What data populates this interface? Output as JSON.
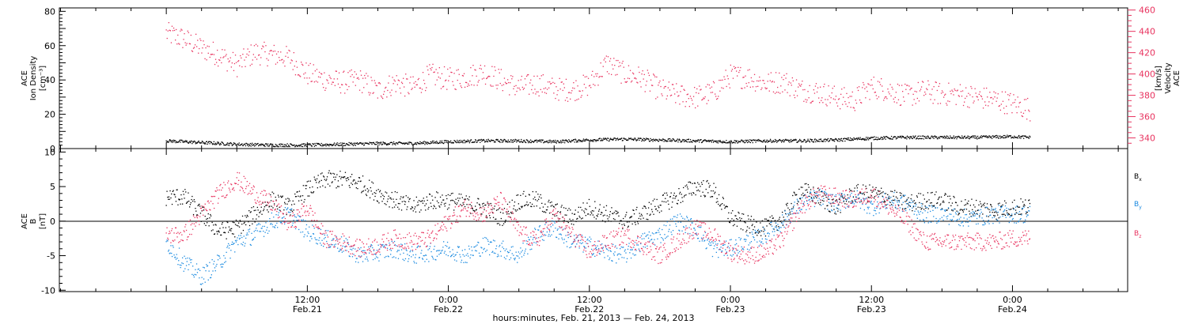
{
  "colors": {
    "black": "#000000",
    "pink": "#e8335f",
    "blue": "#1a8ae0"
  },
  "chart_data": [
    {
      "type": "scatter",
      "panel": "top",
      "ylabel_left": [
        "ACE",
        "Ion Density",
        "[cm⁻³]"
      ],
      "ylabel_right": [
        "ACE",
        "Velocity",
        "[km/s]"
      ],
      "y_left_ticks": [
        "0",
        "20",
        "40",
        "60",
        "80"
      ],
      "y_left_lim": [
        0,
        82
      ],
      "y_right_ticks": [
        "340",
        "360",
        "380",
        "400",
        "420",
        "440",
        "460"
      ],
      "y_right_lim": [
        330,
        462
      ],
      "series": [
        {
          "axis": "right",
          "color": "#e8335f",
          "x_hours": [
            0,
            1.5,
            3,
            4.5,
            6,
            7.5,
            9,
            10.5,
            12,
            13.5,
            15,
            16.5,
            18,
            19.5,
            21,
            22.5,
            24,
            25.5,
            27,
            28.5,
            30,
            31.5,
            33,
            34.5,
            36,
            37.5,
            39,
            40.5,
            42,
            43.5,
            45,
            46.5,
            48,
            49.5,
            51,
            52.5,
            54,
            55.5,
            57,
            58.5,
            60,
            61.5,
            63,
            64.5,
            66,
            67.5,
            69,
            70.5,
            72,
            73.5
          ],
          "values": [
            438,
            433,
            424,
            418,
            408,
            420,
            418,
            415,
            400,
            395,
            392,
            394,
            384,
            392,
            387,
            399,
            395,
            397,
            402,
            394,
            387,
            391,
            386,
            385,
            390,
            410,
            400,
            396,
            385,
            380,
            378,
            382,
            398,
            397,
            391,
            393,
            385,
            383,
            378,
            375,
            388,
            385,
            379,
            384,
            381,
            381,
            378,
            376,
            372,
            367
          ]
        },
        {
          "axis": "left",
          "color": "#000000",
          "x_hours": [
            0,
            3,
            6,
            9,
            12,
            15,
            18,
            21,
            24,
            27,
            30,
            33,
            36,
            39,
            42,
            45,
            48,
            51,
            54,
            57,
            60,
            63,
            66,
            69,
            72,
            73.5
          ],
          "values": [
            4.5,
            3.5,
            2.5,
            2.0,
            2.0,
            2.5,
            3.0,
            3.0,
            4.0,
            4.5,
            4.5,
            4.0,
            5.0,
            5.5,
            5.0,
            4.5,
            4.0,
            4.5,
            4.5,
            5.0,
            6.0,
            6.5,
            6.5,
            6.5,
            7.0,
            6.5
          ]
        }
      ]
    },
    {
      "type": "scatter",
      "panel": "bottom",
      "ylabel_left": [
        "ACE",
        "B",
        "[nT]"
      ],
      "y_ticks": [
        "-10",
        "-5",
        "0",
        "5",
        "10"
      ],
      "ylim": [
        -10.2,
        10.5
      ],
      "legend": {
        "placement": "right",
        "entries": [
          "Bx",
          "By",
          "Bz"
        ]
      },
      "x_hours": [
        0,
        1.5,
        3,
        4.5,
        6,
        7.5,
        9,
        10.5,
        12,
        13.5,
        15,
        16.5,
        18,
        19.5,
        21,
        22.5,
        24,
        25.5,
        27,
        28.5,
        30,
        31.5,
        33,
        34.5,
        36,
        37.5,
        39,
        40.5,
        42,
        43.5,
        45,
        46.5,
        48,
        49.5,
        51,
        52.5,
        54,
        55.5,
        57,
        58.5,
        60,
        61.5,
        63,
        64.5,
        66,
        67.5,
        69,
        70.5,
        72,
        73.5
      ],
      "series": [
        {
          "name": "Bx",
          "color": "#000000",
          "values": [
            3.5,
            3.5,
            1.0,
            -1.5,
            -1.0,
            1.0,
            3.0,
            2.0,
            4.5,
            6.0,
            6.0,
            5.5,
            4.0,
            3.0,
            2.0,
            3.0,
            3.0,
            2.5,
            2.0,
            0.5,
            3.0,
            3.0,
            1.5,
            0.5,
            2.0,
            1.0,
            0.0,
            1.0,
            2.5,
            3.5,
            5.0,
            4.5,
            0.5,
            -0.5,
            -1.0,
            0.5,
            4.5,
            3.5,
            2.0,
            4.0,
            4.0,
            3.5,
            2.5,
            3.0,
            3.0,
            2.0,
            2.0,
            1.5,
            2.0,
            2.0
          ]
        },
        {
          "name": "By",
          "color": "#1a8ae0",
          "values": [
            -3.0,
            -6.0,
            -8.0,
            -6.0,
            -3.0,
            -2.0,
            0.0,
            1.0,
            -1.5,
            -2.5,
            -3.5,
            -5.0,
            -4.5,
            -4.0,
            -5.0,
            -4.5,
            -4.0,
            -5.0,
            -3.5,
            -4.0,
            -5.0,
            -2.0,
            -1.0,
            -3.0,
            -3.5,
            -4.5,
            -5.0,
            -3.0,
            -2.0,
            0.0,
            -1.0,
            -4.0,
            -4.0,
            -3.0,
            -2.0,
            0.0,
            2.5,
            3.5,
            2.5,
            3.5,
            2.0,
            3.0,
            2.5,
            1.0,
            1.0,
            0.5,
            0.5,
            1.0,
            1.0,
            1.0
          ]
        },
        {
          "name": "Bz",
          "color": "#e8335f",
          "values": [
            -2.0,
            -2.0,
            1.0,
            4.0,
            6.0,
            4.0,
            2.5,
            -0.5,
            2.0,
            -2.5,
            -3.0,
            -4.0,
            -3.5,
            -2.5,
            -3.0,
            -2.5,
            0.0,
            2.0,
            1.0,
            3.0,
            -1.5,
            -3.0,
            1.0,
            -2.0,
            -4.5,
            -3.0,
            -2.0,
            -3.5,
            -5.0,
            -3.0,
            -1.0,
            -2.0,
            -4.5,
            -5.0,
            -4.5,
            -2.5,
            2.0,
            4.0,
            3.5,
            3.0,
            4.0,
            2.0,
            0.0,
            -3.0,
            -3.0,
            -3.0,
            -3.0,
            -3.0,
            -2.5,
            -2.5
          ]
        }
      ]
    },
    {
      "type": "axis",
      "xlabel": "hours:minutes, Feb. 21, 2013 — Feb. 24, 2013",
      "x_range_hours": [
        -9.1,
        81.8
      ],
      "ticks": [
        {
          "h": 12,
          "time": "12:00",
          "date": "Feb.21"
        },
        {
          "h": 24,
          "time": "0:00",
          "date": "Feb.22"
        },
        {
          "h": 36,
          "time": "12:00",
          "date": "Feb.22"
        },
        {
          "h": 48,
          "time": "0:00",
          "date": "Feb.23"
        },
        {
          "h": 60,
          "time": "12:00",
          "date": "Feb.23"
        },
        {
          "h": 72,
          "time": "0:00",
          "date": "Feb.24"
        }
      ]
    }
  ]
}
